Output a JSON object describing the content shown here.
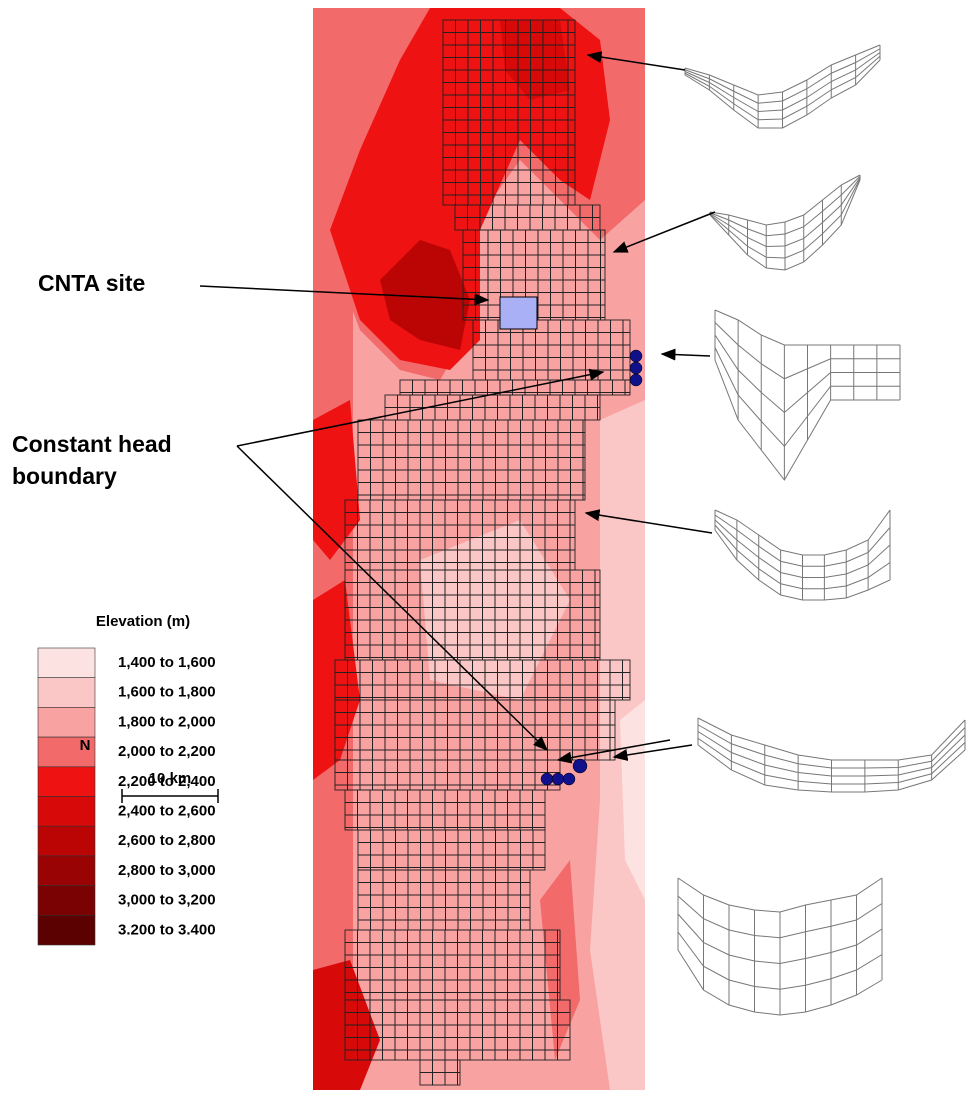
{
  "labels": {
    "cnta_site": "CNTA site",
    "constant_head": [
      "Constant head",
      "boundary"
    ]
  },
  "legend": {
    "title": "Elevation (m)",
    "entries": [
      {
        "label": "1,400 to 1,600",
        "color": "#fde2e2"
      },
      {
        "label": "1,600 to 1,800",
        "color": "#fbc6c6"
      },
      {
        "label": "1,800 to 2,000",
        "color": "#f8a2a2"
      },
      {
        "label": "2,000 to 2,200",
        "color": "#f26a6a"
      },
      {
        "label": "2,200 to 2,400",
        "color": "#ee1212"
      },
      {
        "label": "2,400 to 2,600",
        "color": "#d80909"
      },
      {
        "label": "2,600 to 2,800",
        "color": "#bb0505"
      },
      {
        "label": "2,800 to 3,000",
        "color": "#990303"
      },
      {
        "label": "3,000 to 3,200",
        "color": "#7a0202"
      },
      {
        "label": "3.200 to 3.400",
        "color": "#5c0101"
      }
    ]
  },
  "north": "N",
  "scale_bar": "10 km"
}
